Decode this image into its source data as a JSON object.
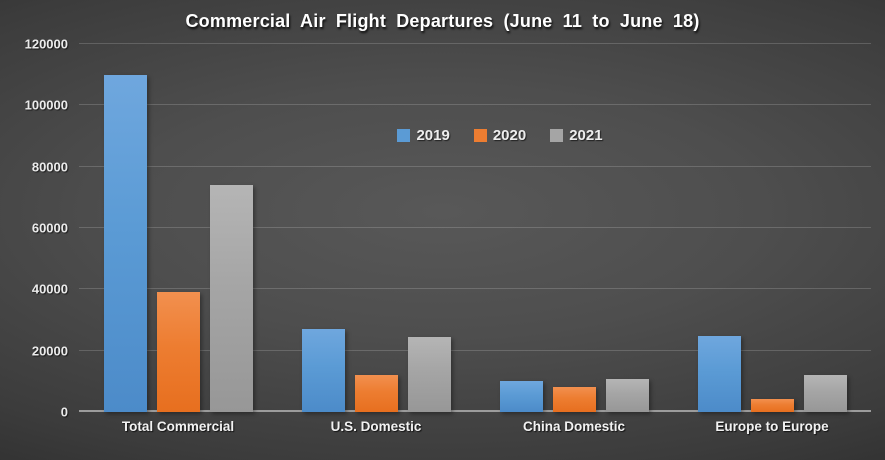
{
  "chart_data": {
    "type": "bar",
    "title": "Commercial Air Flight Departures (June 11 to June 18)",
    "categories": [
      "Total Commercial",
      "U.S. Domestic",
      "China Domestic",
      "Europe to Europe"
    ],
    "series": [
      {
        "name": "2019",
        "color": "#5B9BD5",
        "color_light": "#6FA7DE",
        "color_dark": "#4C8BC9",
        "values": [
          110000,
          27200,
          10000,
          24700
        ]
      },
      {
        "name": "2020",
        "color": "#ED7D31",
        "color_light": "#F2904F",
        "color_dark": "#E76F1F",
        "values": [
          39000,
          12200,
          8000,
          4100
        ]
      },
      {
        "name": "2021",
        "color": "#A5A5A5",
        "color_light": "#B5B5B5",
        "color_dark": "#979797",
        "values": [
          74000,
          24400,
          10800,
          12000
        ]
      }
    ],
    "xlabel": "",
    "ylabel": "",
    "ylim": [
      0,
      120000
    ],
    "yticks": [
      0,
      20000,
      40000,
      60000,
      80000,
      100000,
      120000
    ],
    "grid": true,
    "legend_position": "upper-center-inside",
    "background": {
      "center": "#585858",
      "edge": "#222222"
    },
    "gridline_color": "rgba(255,255,255,0.17)",
    "baseline_color": "#9c9c9c",
    "text_color": "#ffffff"
  }
}
